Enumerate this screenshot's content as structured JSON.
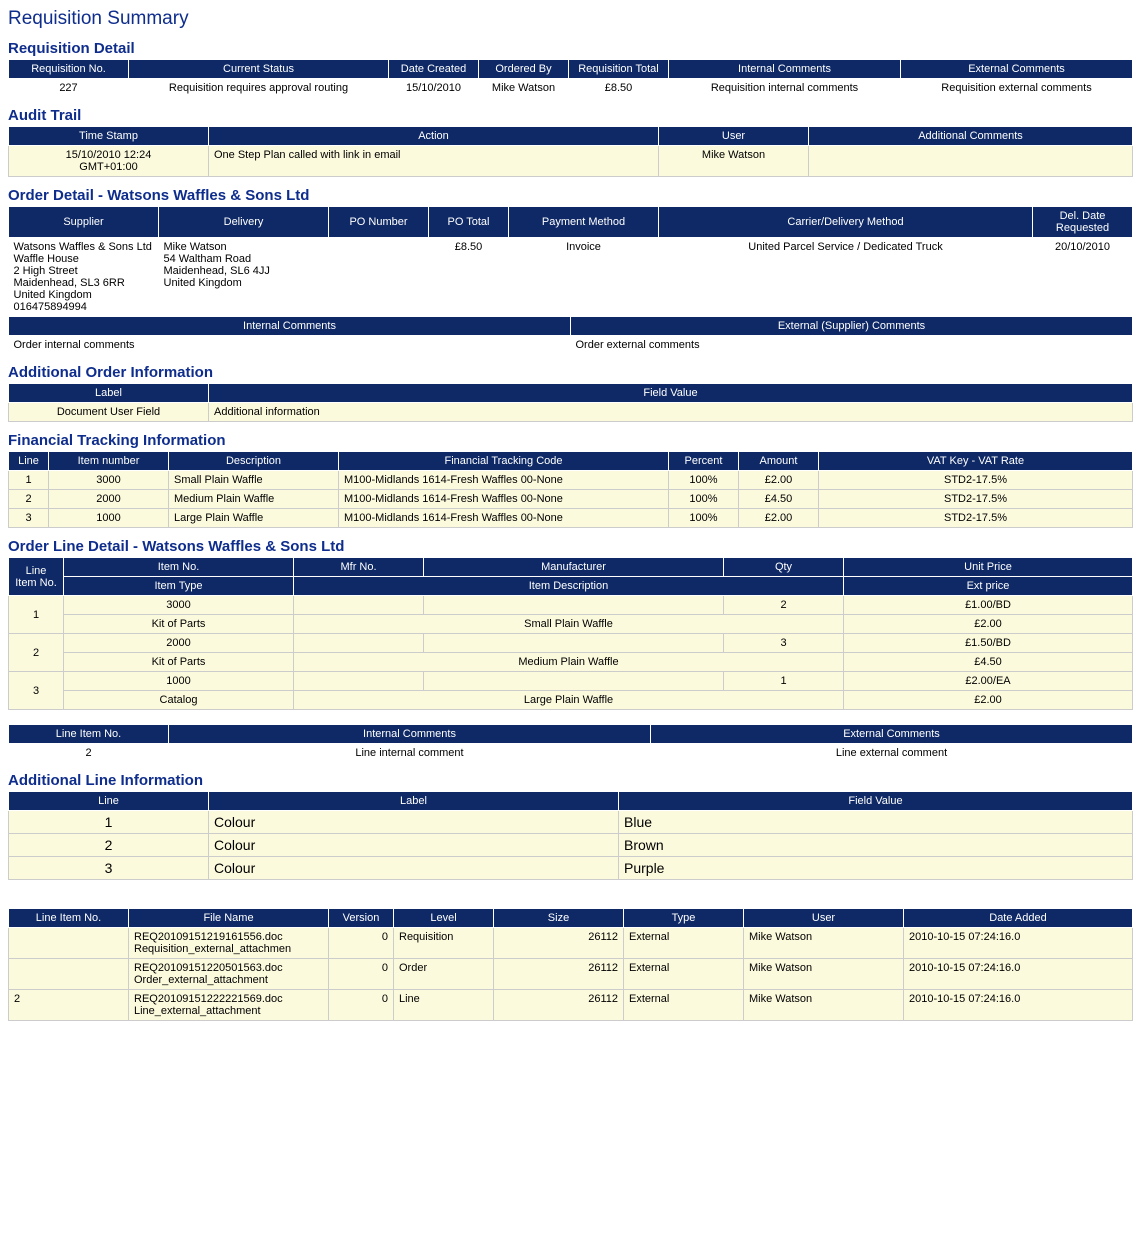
{
  "colors": {
    "header_bg": "#0e2966",
    "header_text": "#ffffff",
    "title_text": "#0e2d8c",
    "cream_bg": "#fcfadd",
    "border": "#cccccc"
  },
  "page_title": "Requisition Summary",
  "req_detail": {
    "title": "Requisition Detail",
    "headers": [
      "Requisition No.",
      "Current Status",
      "Date Created",
      "Ordered By",
      "Requisition Total",
      "Internal Comments",
      "External Comments"
    ],
    "row": {
      "req_no": "227",
      "status": "Requisition requires approval routing",
      "date_created": "15/10/2010",
      "ordered_by": "Mike Watson",
      "total": "£8.50",
      "internal": "Requisition internal comments",
      "external": "Requisition external comments"
    }
  },
  "audit": {
    "title": "Audit Trail",
    "headers": [
      "Time Stamp",
      "Action",
      "User",
      "Additional Comments"
    ],
    "row": {
      "ts1": "15/10/2010 12:24",
      "ts2": "GMT+01:00",
      "action": "One Step Plan called with link in email",
      "user": "Mike Watson",
      "comments": ""
    }
  },
  "order_detail": {
    "title": "Order Detail - Watsons Waffles & Sons Ltd",
    "headers": [
      "Supplier",
      "Delivery",
      "PO Number",
      "PO Total",
      "Payment Method",
      "Carrier/Delivery Method",
      "Del. Date Requested"
    ],
    "supplier": {
      "l1": "Watsons Waffles & Sons Ltd",
      "l2": "Waffle House",
      "l3": "2 High Street",
      "l4": "Maidenhead,   SL3 6RR",
      "l5": "United Kingdom",
      "l6": "016475894994"
    },
    "delivery": {
      "l1": "Mike Watson",
      "l2": "54 Waltham Road",
      "l3": "Maidenhead,   SL6 4JJ",
      "l4": "United Kingdom"
    },
    "po_number": "",
    "po_total": "£8.50",
    "payment_method": "Invoice",
    "carrier": "United Parcel Service / Dedicated Truck",
    "del_date": "20/10/2010",
    "comment_headers": [
      "Internal Comments",
      "External (Supplier) Comments"
    ],
    "internal_comments": "Order internal comments",
    "external_comments": "Order external comments"
  },
  "add_order_info": {
    "title": "Additional Order Information",
    "headers": [
      "Label",
      "Field Value"
    ],
    "row": {
      "label": "Document User Field",
      "value": "Additional information"
    }
  },
  "fin_track": {
    "title": "Financial Tracking Information",
    "headers": [
      "Line",
      "Item number",
      "Description",
      "Financial Tracking Code",
      "Percent",
      "Amount",
      "VAT Key - VAT Rate"
    ],
    "rows": [
      {
        "line": "1",
        "item": "3000",
        "desc": "Small Plain Waffle",
        "code": "M100-Midlands 1614-Fresh Waffles 00-None",
        "pct": "100%",
        "amt": "£2.00",
        "vat": "STD2-17.5%"
      },
      {
        "line": "2",
        "item": "2000",
        "desc": "Medium Plain Waffle",
        "code": "M100-Midlands 1614-Fresh Waffles 00-None",
        "pct": "100%",
        "amt": "£4.50",
        "vat": "STD2-17.5%"
      },
      {
        "line": "3",
        "item": "1000",
        "desc": "Large Plain Waffle",
        "code": "M100-Midlands 1614-Fresh Waffles 00-None",
        "pct": "100%",
        "amt": "£2.00",
        "vat": "STD2-17.5%"
      }
    ]
  },
  "order_line": {
    "title": "Order Line Detail - Watsons Waffles & Sons Ltd",
    "headers_top": [
      "Line Item No.",
      "Item No.",
      "Mfr No.",
      "Manufacturer",
      "Qty",
      "Unit Price"
    ],
    "headers_bot": [
      "Item Type",
      "Item Description",
      "Ext price"
    ],
    "rows": [
      {
        "line": "1",
        "item_no": "3000",
        "mfr_no": "",
        "mfr": "",
        "qty": "2",
        "unit": "£1.00/BD",
        "type": "Kit of Parts",
        "desc": "Small Plain Waffle",
        "ext": "£2.00"
      },
      {
        "line": "2",
        "item_no": "2000",
        "mfr_no": "",
        "mfr": "",
        "qty": "3",
        "unit": "£1.50/BD",
        "type": "Kit of Parts",
        "desc": "Medium Plain Waffle",
        "ext": "£4.50"
      },
      {
        "line": "3",
        "item_no": "1000",
        "mfr_no": "",
        "mfr": "",
        "qty": "1",
        "unit": "£2.00/EA",
        "type": "Catalog",
        "desc": "Large Plain Waffle",
        "ext": "£2.00"
      }
    ]
  },
  "line_comments": {
    "headers": [
      "Line Item No.",
      "Internal Comments",
      "External Comments"
    ],
    "row": {
      "line": "2",
      "internal": "Line internal comment",
      "external": "Line external comment"
    }
  },
  "add_line_info": {
    "title": "Additional Line Information",
    "headers": [
      "Line",
      "Label",
      "Field Value"
    ],
    "rows": [
      {
        "line": "1",
        "label": "Colour",
        "value": "Blue"
      },
      {
        "line": "2",
        "label": "Colour",
        "value": "Brown"
      },
      {
        "line": "3",
        "label": "Colour",
        "value": "Purple"
      }
    ]
  },
  "attachments": {
    "headers": [
      "Line Item No.",
      "File Name",
      "Version",
      "Level",
      "Size",
      "Type",
      "User",
      "Date Added"
    ],
    "rows": [
      {
        "line": "",
        "f1": "REQ20109151219161556.doc",
        "f2": "Requisition_external_attachmen",
        "ver": "0",
        "level": "Requisition",
        "size": "26112",
        "type": "External",
        "user": "Mike Watson",
        "date": "2010-10-15 07:24:16.0"
      },
      {
        "line": "",
        "f1": "REQ20109151220501563.doc",
        "f2": "Order_external_attachment",
        "ver": "0",
        "level": "Order",
        "size": "26112",
        "type": "External",
        "user": "Mike Watson",
        "date": "2010-10-15 07:24:16.0"
      },
      {
        "line": "2",
        "f1": "REQ20109151222221569.doc",
        "f2": "Line_external_attachment",
        "ver": "0",
        "level": "Line",
        "size": "26112",
        "type": "External",
        "user": "Mike Watson",
        "date": "2010-10-15 07:24:16.0"
      }
    ]
  }
}
